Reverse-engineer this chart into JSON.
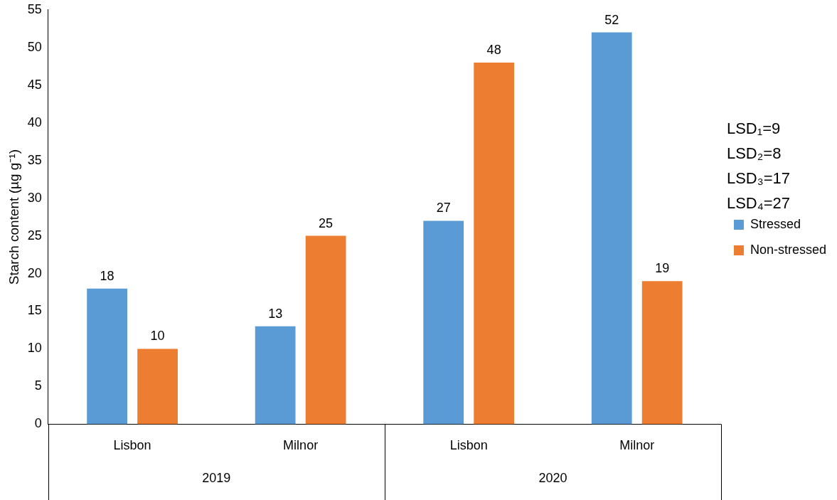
{
  "chart_data": {
    "type": "bar",
    "ylabel": "Starch content (µg g⁻¹)",
    "categories": [
      "Lisbon",
      "Milnor",
      "Lisbon",
      "Milnor"
    ],
    "series": [
      {
        "name": "Stressed",
        "color": "#5b9bd5",
        "values": [
          18,
          13,
          27,
          52
        ]
      },
      {
        "name": "Non-stressed",
        "color": "#ed7d31",
        "values": [
          10,
          25,
          48,
          19
        ]
      }
    ],
    "ylim": [
      0,
      55
    ],
    "yticks": [
      0,
      5,
      10,
      15,
      20,
      25,
      30,
      35,
      40,
      45,
      50,
      55
    ],
    "data_labels": true,
    "legend": "right",
    "grid": false,
    "annotations": [
      "2019",
      "2020",
      "LSD₁=9",
      "LSD₂=8",
      "LSD₃=17",
      "LSD₄=27"
    ]
  }
}
